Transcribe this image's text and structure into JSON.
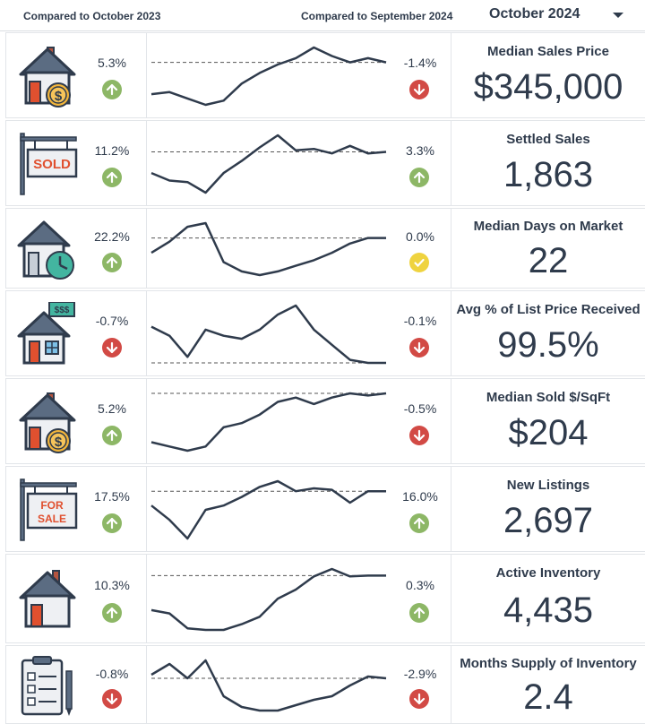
{
  "header": {
    "yoy_label": "Compared to October 2023",
    "mom_label": "Compared to September 2024",
    "month_selected": "October 2024"
  },
  "colors": {
    "up": "#8db766",
    "down": "#d24a45",
    "flat": "#efd33f",
    "line": "#2f3b4c"
  },
  "metrics": [
    {
      "title": "Median Sales Price",
      "value": "$345,000",
      "icon": "house-dollar-icon",
      "yoy": "5.3%",
      "yoy_dir": "up",
      "mom": "-1.4%",
      "mom_dir": "down",
      "trend": [
        92.5,
        93.0,
        91.5,
        90.0,
        91.0,
        95.0,
        97.5,
        99.5,
        101.0,
        103.5,
        101.5,
        100.0,
        101.0,
        100.0
      ],
      "reference": 100.0
    },
    {
      "title": "Settled Sales",
      "value": "1,863",
      "icon": "sold-sign-icon",
      "yoy": "11.2%",
      "yoy_dir": "up",
      "mom": "3.3%",
      "mom_dir": "up",
      "trend": [
        90.0,
        87.5,
        87.0,
        83.5,
        90.0,
        94.0,
        98.5,
        102.5,
        97.5,
        98.0,
        96.5,
        99.0,
        96.5,
        97.0
      ],
      "reference": 97.0
    },
    {
      "title": "Median Days on Market",
      "value": "22",
      "icon": "house-clock-icon",
      "yoy": "22.2%",
      "yoy_dir": "up",
      "mom": "0.0%",
      "mom_dir": "flat",
      "trend": [
        13.0,
        16.0,
        20.0,
        21.0,
        10.5,
        8.0,
        7.0,
        8.0,
        9.5,
        11.0,
        13.0,
        15.5,
        17.0,
        17.0
      ],
      "reference": 17.0
    },
    {
      "title": "Avg % of List Price Received",
      "value": "99.5%",
      "icon": "house-money-icon",
      "yoy": "-0.7%",
      "yoy_dir": "down",
      "mom": "-0.1%",
      "mom_dir": "down",
      "trend": [
        101.0,
        100.7,
        100.0,
        100.9,
        100.7,
        100.6,
        100.9,
        101.4,
        101.7,
        100.9,
        100.4,
        99.9,
        99.8,
        99.8
      ],
      "reference": 99.8
    },
    {
      "title": "Median Sold $/SqFt",
      "value": "$204",
      "icon": "house-dollar-icon",
      "yoy": "5.2%",
      "yoy_dir": "up",
      "mom": "-0.5%",
      "mom_dir": "down",
      "trend": [
        193.5,
        192.5,
        191.5,
        192.5,
        197.0,
        198.0,
        200.0,
        203.0,
        204.0,
        202.5,
        204.0,
        205.0,
        204.5,
        205.0
      ],
      "reference": 205.0
    },
    {
      "title": "New Listings",
      "value": "2,697",
      "icon": "for-sale-sign-icon",
      "yoy": "17.5%",
      "yoy_dir": "up",
      "mom": "16.0%",
      "mom_dir": "up",
      "trend": [
        2550,
        2450,
        2320,
        2520,
        2550,
        2610,
        2680,
        2720,
        2650,
        2670,
        2660,
        2570,
        2650,
        2650
      ],
      "reference": 2650
    },
    {
      "title": "Active Inventory",
      "value": "4,435",
      "icon": "house-icon",
      "yoy": "10.3%",
      "yoy_dir": "up",
      "mom": "0.3%",
      "mom_dir": "up",
      "trend": [
        3900,
        3860,
        3680,
        3660,
        3660,
        3730,
        3820,
        4040,
        4150,
        4310,
        4400,
        4310,
        4320,
        4320
      ],
      "reference": 4320
    },
    {
      "title": "Months Supply of Inventory",
      "value": "2.4",
      "icon": "checklist-icon",
      "yoy": "-0.8%",
      "yoy_dir": "down",
      "mom": "-2.9%",
      "mom_dir": "down",
      "trend": [
        2.6,
        2.9,
        2.5,
        3.0,
        2.0,
        1.7,
        1.6,
        1.6,
        1.75,
        1.9,
        2.0,
        2.3,
        2.55,
        2.5
      ],
      "reference": 2.5
    }
  ]
}
